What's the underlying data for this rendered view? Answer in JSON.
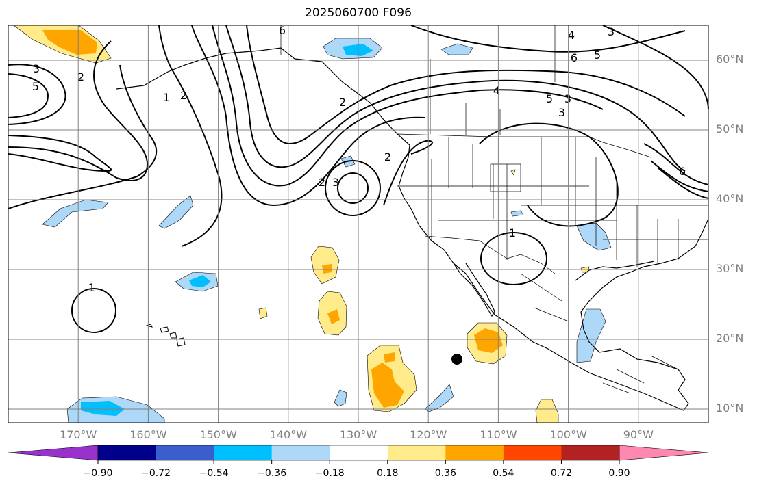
{
  "title": "2025060700 F096",
  "lat_labels": [
    {
      "text": "60°N",
      "lat": 60
    },
    {
      "text": "50°N",
      "lat": 50
    },
    {
      "text": "40°N",
      "lat": 40
    },
    {
      "text": "30°N",
      "lat": 30
    },
    {
      "text": "20°N",
      "lat": 20
    },
    {
      "text": "10°N",
      "lat": 10
    }
  ],
  "lon_labels": [
    {
      "text": "170°W",
      "lon": -170
    },
    {
      "text": "160°W",
      "lon": -160
    },
    {
      "text": "150°W",
      "lon": -150
    },
    {
      "text": "140°W",
      "lon": -140
    },
    {
      "text": "130°W",
      "lon": -130
    },
    {
      "text": "120°W",
      "lon": -120
    },
    {
      "text": "110°W",
      "lon": -110
    },
    {
      "text": "100°W",
      "lon": -100
    },
    {
      "text": "90°W",
      "lon": -90
    }
  ],
  "colorbar": {
    "ticks": [
      "−0.90",
      "−0.72",
      "−0.54",
      "−0.36",
      "−0.18",
      "0.18",
      "0.36",
      "0.54",
      "0.72",
      "0.90"
    ],
    "colors": [
      "#9932cc",
      "#00008b",
      "#3a5fcd",
      "#00bfff",
      "#add8f8",
      "#ffffff",
      "#ffeb8a",
      "#ffa500",
      "#ff4500",
      "#b22222",
      "#ff88b0"
    ]
  },
  "contour_labels": [
    "6",
    "4",
    "3",
    "6",
    "5",
    "3",
    "2",
    "5",
    "1",
    "2",
    "2",
    "2",
    "3",
    "4",
    "5",
    "3",
    "2",
    "3",
    "1",
    "1",
    "6"
  ],
  "marker": "filled-circle"
}
